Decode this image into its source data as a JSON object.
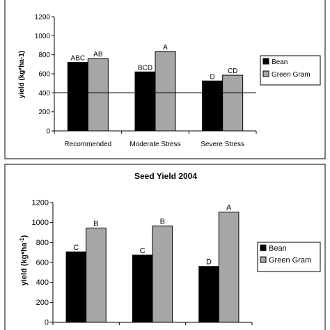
{
  "colors": {
    "bean": "#000000",
    "green_gram": "#a6a6a6",
    "line": "#000000",
    "background": "#ffffff"
  },
  "chart_data": [
    {
      "type": "bar",
      "title": "",
      "xlabel": "",
      "ylabel": "yield (kg*ha-1)",
      "ylim": [
        0,
        1200
      ],
      "yticks": [
        "0",
        "200",
        "400",
        "600",
        "800",
        "1000",
        "1200"
      ],
      "grid": false,
      "reference_line_y": 400,
      "legend_position": "right",
      "categories": [
        "Recommended",
        "Moderate Stress",
        "Severe Stress"
      ],
      "series": [
        {
          "name": "Bean",
          "values": [
            720,
            620,
            525
          ],
          "labels": [
            "ABC",
            "BCD",
            "D"
          ]
        },
        {
          "name": "Green Gram",
          "values": [
            760,
            835,
            585
          ],
          "labels": [
            "AB",
            "A",
            "CD"
          ]
        }
      ]
    },
    {
      "type": "bar",
      "title": "Seed Yield 2004",
      "xlabel": "",
      "ylabel": "yield (kg*ha",
      "ylabel_sup": "-1",
      "ylabel_end": ")",
      "ylim": [
        0,
        1200
      ],
      "yticks": [
        "0",
        "200",
        "400",
        "600",
        "800",
        "1000",
        "1200"
      ],
      "grid": false,
      "legend_position": "right",
      "categories": [
        "",
        "",
        ""
      ],
      "series": [
        {
          "name": "Bean",
          "values": [
            705,
            675,
            560
          ],
          "labels": [
            "C",
            "C",
            "D"
          ]
        },
        {
          "name": "Green Gram",
          "values": [
            945,
            965,
            1105
          ],
          "labels": [
            "B",
            "B",
            "A"
          ]
        }
      ]
    }
  ]
}
